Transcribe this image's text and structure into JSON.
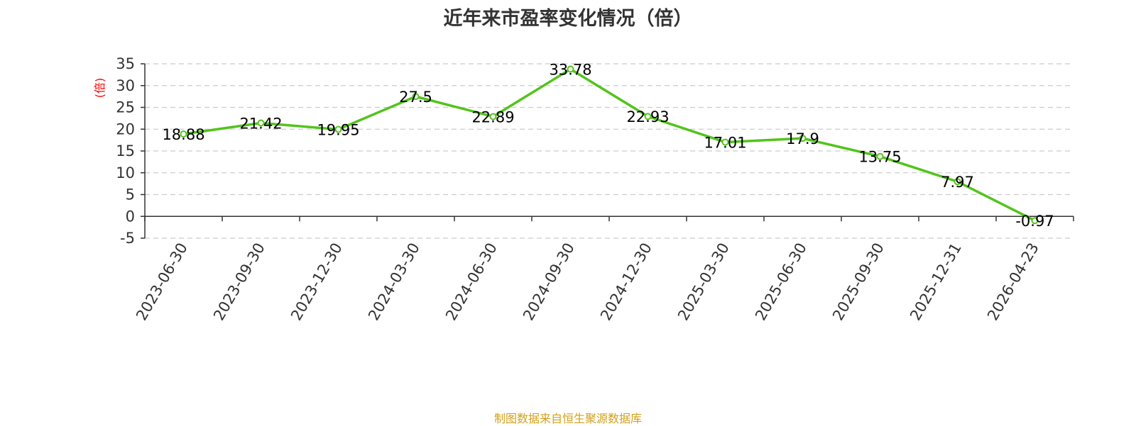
{
  "footer": "制图数据来自恒生聚源数据库",
  "chart_data": {
    "type": "line",
    "title": "近年来市盈率变化情况（倍）",
    "ylabel": "(倍)",
    "xlabel": "",
    "categories": [
      "2023-06-30",
      "2023-09-30",
      "2023-12-30",
      "2024-03-30",
      "2024-06-30",
      "2024-09-30",
      "2024-12-30",
      "2025-03-30",
      "2025-06-30",
      "2025-09-30",
      "2025-12-31",
      "2026-04-23"
    ],
    "series": [
      {
        "values": [
          18.88,
          21.42,
          19.95,
          27.5,
          22.89,
          33.78,
          22.93,
          17.01,
          17.9,
          13.75,
          7.97,
          -0.97
        ]
      }
    ],
    "data_labels": [
      "18.88",
      "21.42",
      "19.95",
      "27.5",
      "22.89",
      "33.78",
      "22.93",
      "17.01",
      "17.9",
      "13.75",
      "7.97",
      "-0.97"
    ],
    "yticks": [
      "-5",
      "0",
      "5",
      "10",
      "15",
      "20",
      "25",
      "30",
      "35"
    ],
    "ylim": [
      -5,
      35
    ],
    "grid": true,
    "legend": "none",
    "colors": {
      "line": "#52c41a",
      "ylabel": "#ff0000",
      "grid": "#cccccc",
      "axis": "#333333",
      "footer": "#d4a017"
    }
  }
}
